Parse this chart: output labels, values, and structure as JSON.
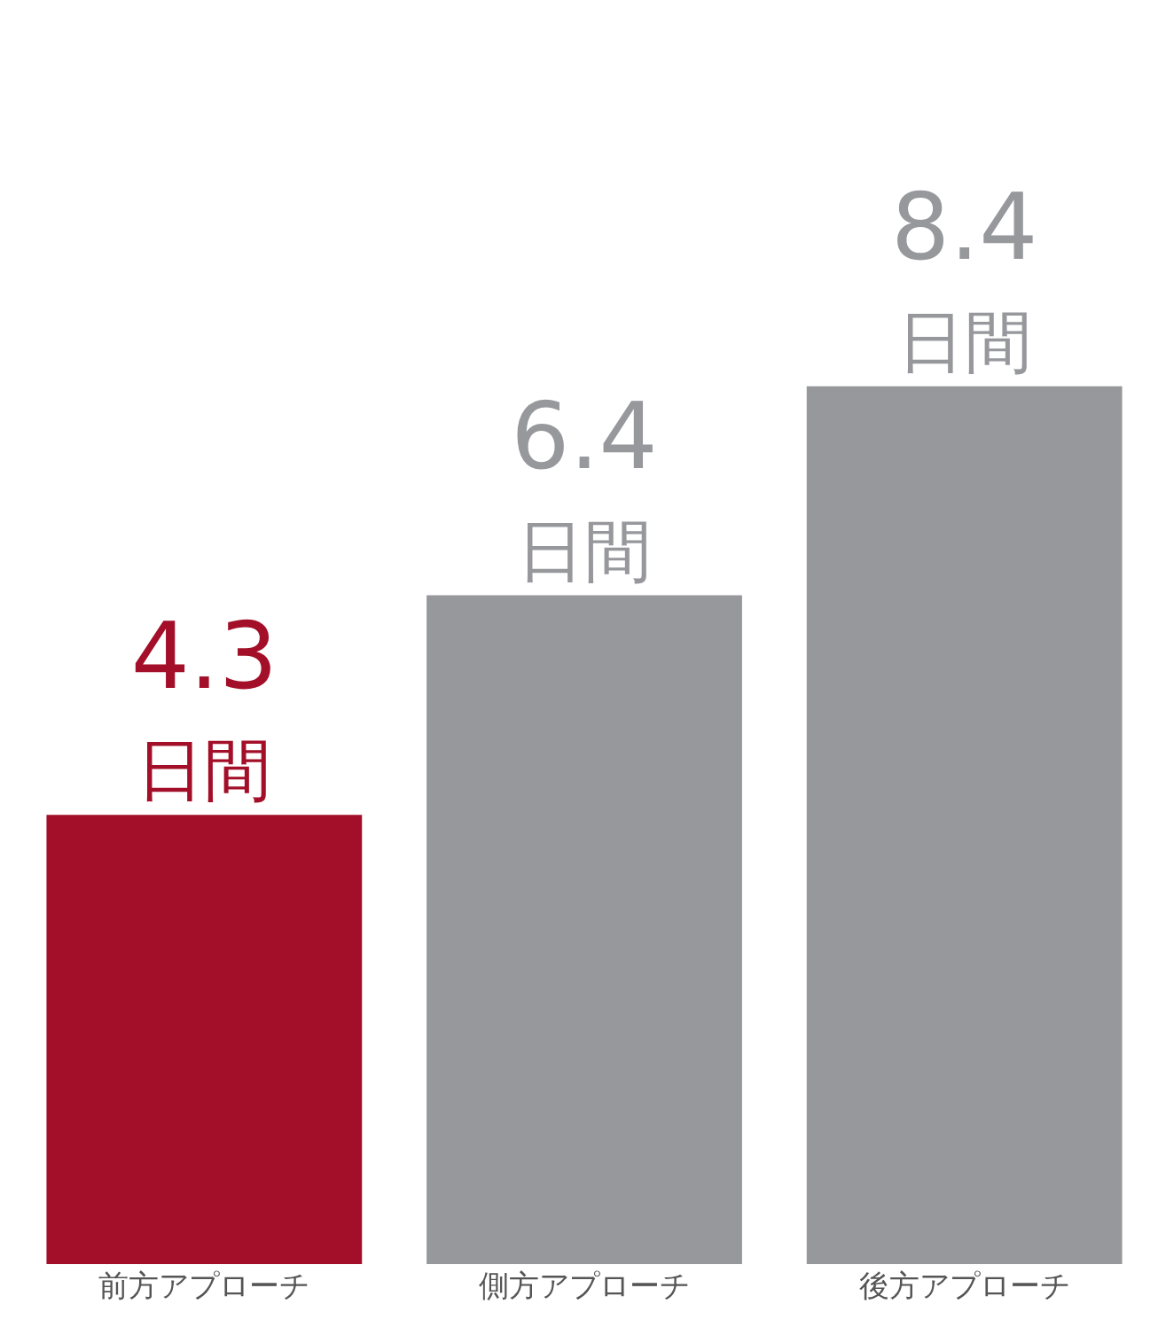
{
  "chart_data": {
    "type": "bar",
    "categories": [
      "前方アプローチ",
      "側方アプローチ",
      "後方アプローチ"
    ],
    "values": [
      4.3,
      6.4,
      8.4
    ],
    "colors": [
      "#a30f29",
      "#97989c",
      "#97989c"
    ],
    "value_labels": [
      "4.3\n日間",
      "6.4\n日間",
      "8.4\n日間"
    ],
    "legend": false
  }
}
